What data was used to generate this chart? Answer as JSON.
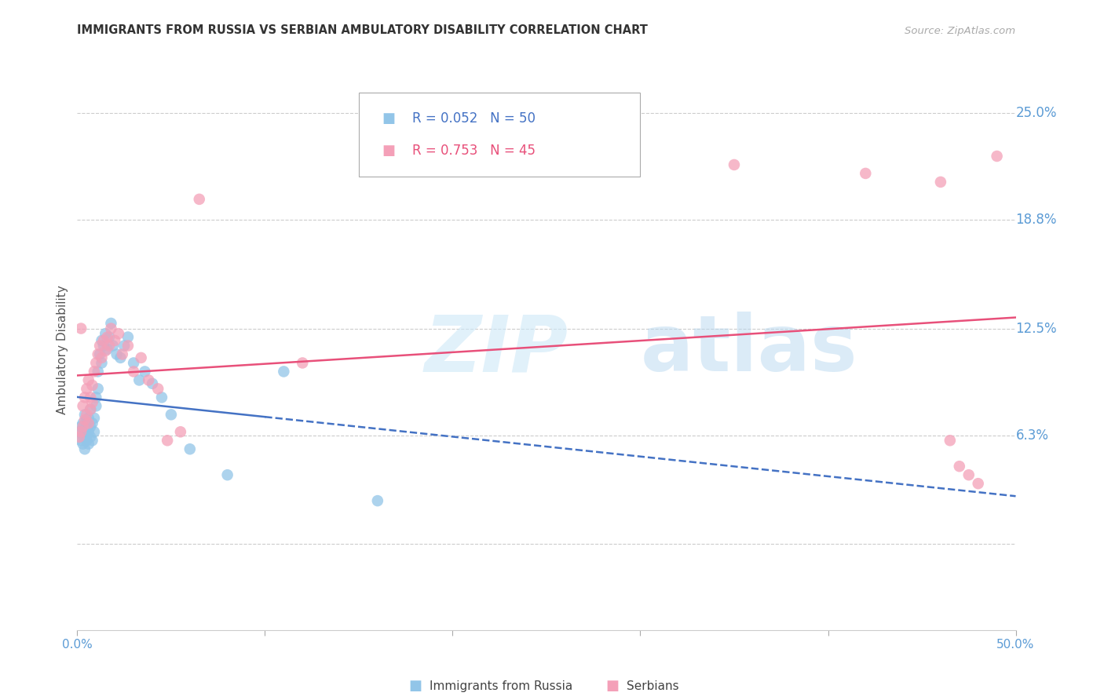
{
  "title": "IMMIGRANTS FROM RUSSIA VS SERBIAN AMBULATORY DISABILITY CORRELATION CHART",
  "source": "Source: ZipAtlas.com",
  "ylabel": "Ambulatory Disability",
  "yticks": [
    0.063,
    0.125,
    0.188,
    0.25
  ],
  "ytick_labels": [
    "6.3%",
    "12.5%",
    "18.8%",
    "25.0%"
  ],
  "xmin": 0.0,
  "xmax": 0.5,
  "ymin": -0.05,
  "ymax": 0.275,
  "watermark_zip": "ZIP",
  "watermark_atlas": "atlas",
  "legend_r1": "R = 0.052",
  "legend_n1": "N = 50",
  "legend_r2": "R = 0.753",
  "legend_n2": "N = 45",
  "color_russia": "#92C5E8",
  "color_serbia": "#F4A0B8",
  "color_russia_line": "#4472C4",
  "color_serbia_line": "#E8507A",
  "color_axis_label": "#5B9BD5",
  "russia_x": [
    0.001,
    0.002,
    0.002,
    0.003,
    0.003,
    0.003,
    0.004,
    0.004,
    0.004,
    0.005,
    0.005,
    0.005,
    0.005,
    0.006,
    0.006,
    0.006,
    0.007,
    0.007,
    0.007,
    0.008,
    0.008,
    0.009,
    0.009,
    0.01,
    0.01,
    0.011,
    0.011,
    0.012,
    0.013,
    0.013,
    0.014,
    0.015,
    0.016,
    0.017,
    0.018,
    0.019,
    0.021,
    0.023,
    0.025,
    0.027,
    0.03,
    0.033,
    0.036,
    0.04,
    0.045,
    0.05,
    0.06,
    0.08,
    0.11,
    0.16
  ],
  "russia_y": [
    0.065,
    0.06,
    0.068,
    0.058,
    0.063,
    0.07,
    0.055,
    0.065,
    0.075,
    0.06,
    0.063,
    0.068,
    0.072,
    0.058,
    0.065,
    0.073,
    0.062,
    0.068,
    0.078,
    0.06,
    0.07,
    0.065,
    0.073,
    0.08,
    0.085,
    0.09,
    0.1,
    0.11,
    0.118,
    0.105,
    0.115,
    0.122,
    0.113,
    0.12,
    0.128,
    0.115,
    0.11,
    0.108,
    0.115,
    0.12,
    0.105,
    0.095,
    0.1,
    0.093,
    0.085,
    0.075,
    0.055,
    0.04,
    0.1,
    0.025
  ],
  "serbia_x": [
    0.001,
    0.002,
    0.002,
    0.003,
    0.003,
    0.004,
    0.004,
    0.005,
    0.005,
    0.006,
    0.006,
    0.007,
    0.007,
    0.008,
    0.008,
    0.009,
    0.01,
    0.011,
    0.012,
    0.013,
    0.014,
    0.015,
    0.016,
    0.017,
    0.018,
    0.02,
    0.022,
    0.024,
    0.027,
    0.03,
    0.034,
    0.038,
    0.043,
    0.048,
    0.055,
    0.065,
    0.12,
    0.35,
    0.42,
    0.46,
    0.465,
    0.47,
    0.475,
    0.48,
    0.49
  ],
  "serbia_y": [
    0.062,
    0.065,
    0.125,
    0.068,
    0.08,
    0.072,
    0.085,
    0.075,
    0.09,
    0.07,
    0.095,
    0.078,
    0.085,
    0.082,
    0.092,
    0.1,
    0.105,
    0.11,
    0.115,
    0.108,
    0.118,
    0.112,
    0.12,
    0.115,
    0.125,
    0.118,
    0.122,
    0.11,
    0.115,
    0.1,
    0.108,
    0.095,
    0.09,
    0.06,
    0.065,
    0.2,
    0.105,
    0.22,
    0.215,
    0.21,
    0.06,
    0.045,
    0.04,
    0.035,
    0.225
  ]
}
